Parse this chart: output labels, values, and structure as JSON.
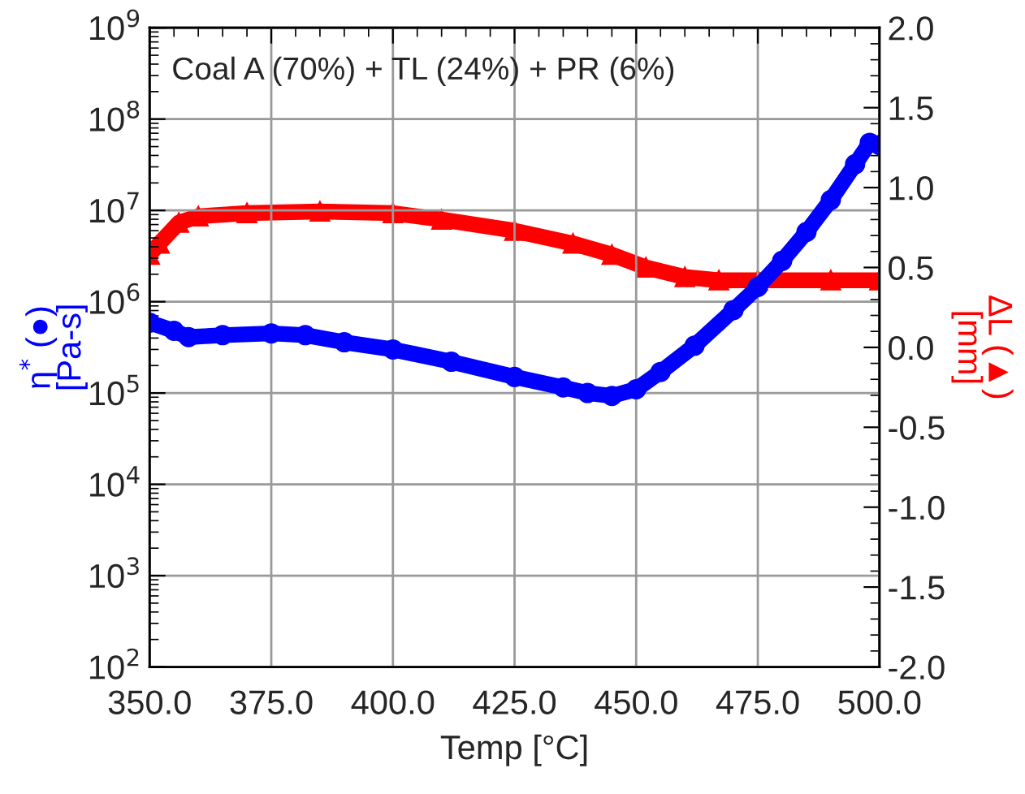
{
  "chart_data": {
    "type": "line",
    "xlabel": "Temp [°C]",
    "ylabel": "η$^{*}$ (●)\n[Pa-s]",
    "y2label": "ΔL (▲)\n[mm]",
    "annotations": [
      "Coal A (70%) + TL (24%) + PR (6%)"
    ],
    "log": "y",
    "grid": true,
    "xlim": [
      350,
      500
    ],
    "xticks": [
      {
        "value": 350,
        "label": "350.0"
      },
      {
        "value": 375,
        "label": "375.0"
      },
      {
        "value": 400,
        "label": "400.0"
      },
      {
        "value": 425,
        "label": "425.0"
      },
      {
        "value": 450,
        "label": "450.0"
      },
      {
        "value": 475,
        "label": "475.0"
      },
      {
        "value": 500,
        "label": "500.0"
      }
    ],
    "ylim": [
      100,
      1000000000
    ],
    "yticks": [
      {
        "value": 100,
        "label": "10$^{2}$"
      },
      {
        "value": 1000,
        "label": "10$^{3}$"
      },
      {
        "value": 10000,
        "label": "10$^{4}$"
      },
      {
        "value": 100000,
        "label": "10$^{5}$"
      },
      {
        "value": 1000000,
        "label": "10$^{6}$"
      },
      {
        "value": 10000000,
        "label": "10$^{7}$"
      },
      {
        "value": 100000000,
        "label": "10$^{8}$"
      },
      {
        "value": 1000000000,
        "label": "10$^{9}$"
      }
    ],
    "y2lim": [
      -2.0,
      2.0
    ],
    "y2ticks": [
      {
        "value": -2.0,
        "label": "-2.0"
      },
      {
        "value": -1.5,
        "label": "-1.5"
      },
      {
        "value": -1.0,
        "label": "-1.0"
      },
      {
        "value": -0.5,
        "label": "-0.5"
      },
      {
        "value": 0.0,
        "label": "0.0"
      },
      {
        "value": 0.5,
        "label": "0.5"
      },
      {
        "value": 1.0,
        "label": "1.0"
      },
      {
        "value": 1.5,
        "label": "1.5"
      },
      {
        "value": 2.0,
        "label": "2.0"
      }
    ],
    "series": [
      {
        "color": "#0000ff",
        "marker": "circle",
        "x": [
          350,
          355,
          358,
          365,
          375,
          382,
          390,
          400,
          412,
          425,
          435,
          440,
          445,
          450,
          455,
          462,
          470,
          475,
          480,
          485,
          490,
          495,
          498,
          500
        ],
        "values": [
          590000,
          480000,
          410000,
          430000,
          450000,
          430000,
          360000,
          300000,
          220000,
          150000,
          115000,
          100000,
          93000,
          110000,
          170000,
          330000,
          810000,
          1450000,
          2800000,
          5800000,
          13000000,
          32000000,
          55000000,
          52000000
        ]
      },
      {
        "color": "#ff0000",
        "marker": "triangle",
        "axis": "y2",
        "x": [
          350,
          352,
          356,
          360,
          370,
          385,
          400,
          410,
          425,
          437,
          445,
          452,
          460,
          467,
          475,
          490,
          500
        ],
        "values": [
          0.58,
          0.65,
          0.78,
          0.82,
          0.84,
          0.85,
          0.84,
          0.8,
          0.73,
          0.65,
          0.58,
          0.5,
          0.44,
          0.42,
          0.42,
          0.42,
          0.42
        ]
      }
    ]
  }
}
